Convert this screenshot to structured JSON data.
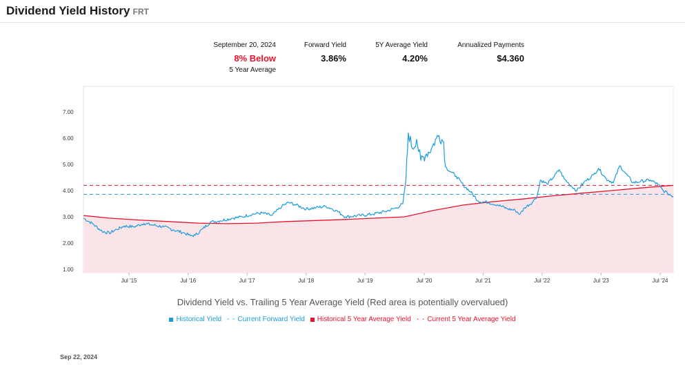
{
  "header": {
    "title": "Dividend Yield History",
    "ticker": "FRT"
  },
  "stats": {
    "date": "September 20, 2024",
    "comparison": "8% Below",
    "comparison_sub": "5 Year Average",
    "forward_label": "Forward Yield",
    "forward_value": "3.86%",
    "avg5_label": "5Y Average Yield",
    "avg5_value": "4.20%",
    "annual_label": "Annualized Payments",
    "annual_value": "$4.360"
  },
  "chart_data": {
    "type": "line",
    "title": "Dividend Yield vs. Trailing 5 Year Average Yield (Red area is potentially overvalued)",
    "x_range": [
      "2014-09-22",
      "2024-09-20"
    ],
    "ylim": [
      1.0,
      7.0
    ],
    "y_ticks": [
      "1.00",
      "2.00",
      "3.00",
      "4.00",
      "5.00",
      "6.00",
      "7.00"
    ],
    "x_tick_labels": [
      {
        "date": "2015-07-01",
        "label": "Jul '15"
      },
      {
        "date": "2016-07-01",
        "label": "Jul '16"
      },
      {
        "date": "2017-07-01",
        "label": "Jul '17"
      },
      {
        "date": "2018-07-01",
        "label": "Jul '18"
      },
      {
        "date": "2019-07-01",
        "label": "Jul '19"
      },
      {
        "date": "2020-07-01",
        "label": "Jul '20"
      },
      {
        "date": "2021-07-01",
        "label": "Jul '21"
      },
      {
        "date": "2022-07-01",
        "label": "Jul '22"
      },
      {
        "date": "2023-07-01",
        "label": "Jul '23"
      },
      {
        "date": "2024-07-01",
        "label": "Jul '24"
      }
    ],
    "series": [
      {
        "name": "Historical Yield",
        "color": "#1a9bdc",
        "points": [
          [
            "2014-09-22",
            2.95
          ],
          [
            "2014-11-15",
            2.75
          ],
          [
            "2015-01-15",
            2.45
          ],
          [
            "2015-03-01",
            2.38
          ],
          [
            "2015-04-15",
            2.52
          ],
          [
            "2015-06-01",
            2.65
          ],
          [
            "2015-08-01",
            2.62
          ],
          [
            "2015-10-01",
            2.75
          ],
          [
            "2015-12-01",
            2.68
          ],
          [
            "2016-02-01",
            2.62
          ],
          [
            "2016-04-01",
            2.5
          ],
          [
            "2016-06-01",
            2.4
          ],
          [
            "2016-07-15",
            2.28
          ],
          [
            "2016-08-15",
            2.3
          ],
          [
            "2016-10-01",
            2.55
          ],
          [
            "2016-11-15",
            2.8
          ],
          [
            "2017-01-15",
            2.85
          ],
          [
            "2017-04-01",
            2.95
          ],
          [
            "2017-06-01",
            3.0
          ],
          [
            "2017-08-01",
            3.1
          ],
          [
            "2017-10-01",
            3.15
          ],
          [
            "2017-12-01",
            3.05
          ],
          [
            "2018-02-01",
            3.4
          ],
          [
            "2018-03-15",
            3.55
          ],
          [
            "2018-05-01",
            3.45
          ],
          [
            "2018-07-01",
            3.3
          ],
          [
            "2018-09-01",
            3.35
          ],
          [
            "2018-11-01",
            3.4
          ],
          [
            "2019-01-01",
            3.25
          ],
          [
            "2019-03-01",
            3.0
          ],
          [
            "2019-06-01",
            3.05
          ],
          [
            "2019-08-15",
            3.1
          ],
          [
            "2019-11-01",
            3.2
          ],
          [
            "2020-01-15",
            3.35
          ],
          [
            "2020-02-20",
            3.5
          ],
          [
            "2020-03-10",
            4.4
          ],
          [
            "2020-03-25",
            6.2
          ],
          [
            "2020-04-20",
            5.6
          ],
          [
            "2020-05-15",
            5.95
          ],
          [
            "2020-06-10",
            5.15
          ],
          [
            "2020-07-15",
            5.4
          ],
          [
            "2020-08-15",
            5.6
          ],
          [
            "2020-09-15",
            6.0
          ],
          [
            "2020-10-01",
            6.1
          ],
          [
            "2020-10-30",
            5.85
          ],
          [
            "2020-11-10",
            4.9
          ],
          [
            "2020-12-15",
            4.7
          ],
          [
            "2021-01-15",
            4.55
          ],
          [
            "2021-03-01",
            4.2
          ],
          [
            "2021-04-15",
            3.95
          ],
          [
            "2021-06-01",
            3.6
          ],
          [
            "2021-08-01",
            3.55
          ],
          [
            "2021-10-01",
            3.45
          ],
          [
            "2021-12-01",
            3.3
          ],
          [
            "2022-01-15",
            3.25
          ],
          [
            "2022-02-15",
            3.1
          ],
          [
            "2022-03-15",
            3.35
          ],
          [
            "2022-05-01",
            3.55
          ],
          [
            "2022-06-01",
            3.8
          ],
          [
            "2022-06-20",
            4.4
          ],
          [
            "2022-08-01",
            4.25
          ],
          [
            "2022-09-15",
            4.55
          ],
          [
            "2022-10-15",
            4.8
          ],
          [
            "2022-11-15",
            4.45
          ],
          [
            "2022-12-15",
            4.25
          ],
          [
            "2023-02-01",
            4.0
          ],
          [
            "2023-03-15",
            4.3
          ],
          [
            "2023-05-15",
            4.6
          ],
          [
            "2023-06-15",
            4.85
          ],
          [
            "2023-08-01",
            4.45
          ],
          [
            "2023-09-15",
            4.3
          ],
          [
            "2023-10-25",
            4.95
          ],
          [
            "2023-12-01",
            4.65
          ],
          [
            "2024-01-15",
            4.3
          ],
          [
            "2024-03-01",
            4.35
          ],
          [
            "2024-05-01",
            4.4
          ],
          [
            "2024-06-15",
            4.25
          ],
          [
            "2024-07-20",
            4.0
          ],
          [
            "2024-08-15",
            3.9
          ],
          [
            "2024-09-20",
            3.78
          ]
        ]
      },
      {
        "name": "Current Forward Yield",
        "color": "#1a9bdc",
        "dashed": true,
        "value": 3.86
      },
      {
        "name": "Historical 5 Year Average Yield",
        "color": "#e8112d",
        "points": [
          [
            "2014-09-22",
            3.05
          ],
          [
            "2015-03-01",
            2.95
          ],
          [
            "2015-09-01",
            2.88
          ],
          [
            "2016-03-01",
            2.82
          ],
          [
            "2016-09-01",
            2.76
          ],
          [
            "2017-03-01",
            2.74
          ],
          [
            "2017-09-01",
            2.76
          ],
          [
            "2018-03-01",
            2.82
          ],
          [
            "2018-09-01",
            2.86
          ],
          [
            "2019-03-01",
            2.9
          ],
          [
            "2019-09-01",
            2.95
          ],
          [
            "2020-03-01",
            3.0
          ],
          [
            "2020-09-01",
            3.25
          ],
          [
            "2021-03-01",
            3.45
          ],
          [
            "2021-09-01",
            3.58
          ],
          [
            "2022-03-01",
            3.68
          ],
          [
            "2022-09-01",
            3.8
          ],
          [
            "2023-03-01",
            3.9
          ],
          [
            "2023-09-01",
            4.0
          ],
          [
            "2024-03-01",
            4.1
          ],
          [
            "2024-09-20",
            4.2
          ]
        ]
      },
      {
        "name": "Current 5 Year Average Yield",
        "color": "#e8112d",
        "dashed": true,
        "value": 4.2
      }
    ],
    "area_fill": "#fbe4e8",
    "grid": false
  },
  "footer": {
    "date": "Sep 22, 2024"
  }
}
